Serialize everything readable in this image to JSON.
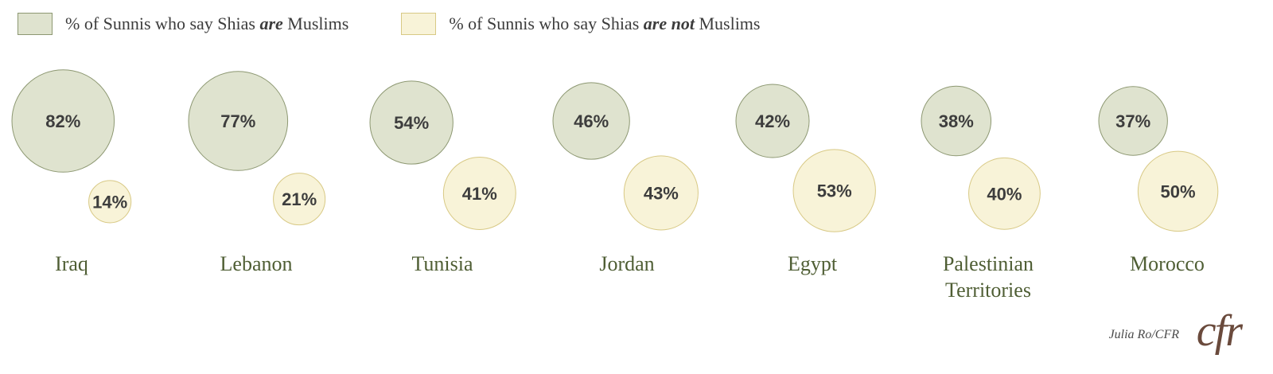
{
  "legend": {
    "items": [
      {
        "prefix": "% of Sunnis who say Shias ",
        "emph": "are",
        "suffix": " Muslims",
        "fill": "#dfe3cf",
        "stroke": "#8d9872"
      },
      {
        "prefix": "% of Sunnis who say Shias ",
        "emph": "are not",
        "suffix": " Muslims",
        "fill": "#f8f3d8",
        "stroke": "#d8c985"
      }
    ]
  },
  "colors": {
    "are_fill": "#dfe3cf",
    "are_stroke": "#8d9872",
    "not_fill": "#f8f3d8",
    "not_stroke": "#d8c985"
  },
  "chart_data": {
    "type": "bubble",
    "categories": [
      "Iraq",
      "Lebanon",
      "Tunisia",
      "Jordan",
      "Egypt",
      "Palestinian Territories",
      "Morocco"
    ],
    "category_lines": [
      [
        "Iraq"
      ],
      [
        "Lebanon"
      ],
      [
        "Tunisia"
      ],
      [
        "Jordan"
      ],
      [
        "Egypt"
      ],
      [
        "Palestinian",
        "Territories"
      ],
      [
        "Morocco"
      ]
    ],
    "series": [
      {
        "name": "% of Sunnis who say Shias are Muslims",
        "values": [
          82,
          77,
          54,
          46,
          42,
          38,
          37
        ],
        "labels": [
          "82%",
          "77%",
          "54%",
          "46%",
          "42%",
          "38%",
          "37%"
        ]
      },
      {
        "name": "% of Sunnis who say Shias are not Muslims",
        "values": [
          14,
          21,
          41,
          43,
          53,
          40,
          50
        ],
        "labels": [
          "14%",
          "21%",
          "41%",
          "43%",
          "53%",
          "40%",
          "50%"
        ]
      }
    ]
  },
  "credit": "Julia Ro/CFR",
  "logo": "cfr"
}
